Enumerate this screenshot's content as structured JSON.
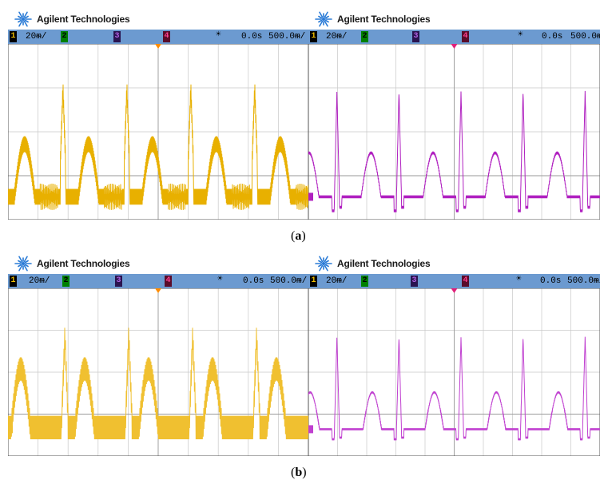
{
  "brand": "Agilent Technologies",
  "panels": [
    {
      "channel1": "1",
      "scale": "20ᵯ/",
      "channel2": "2",
      "channel3": "3",
      "channel4": "4",
      "delay": "0.0s",
      "timebase": "500.0ᵯ/",
      "ground_marker": "1",
      "trace_color": "#e8b000"
    },
    {
      "channel1": "1",
      "scale": "20ᵯ/",
      "channel2": "2",
      "channel3": "3",
      "channel4": "4",
      "delay": "0.0s",
      "timebase": "500.0ᵯ/",
      "ground_marker": "1",
      "trace_color": "#b020c0"
    },
    {
      "channel1": "1",
      "scale": "20ᵯ/",
      "channel2": "2",
      "channel3": "3",
      "channel4": "4",
      "delay": "0.0s",
      "timebase": "500.0ᵯ/",
      "ground_marker": "1",
      "trace_color": "#f0c030"
    },
    {
      "channel1": "1",
      "scale": "20ᵯ/",
      "channel2": "2",
      "channel3": "3",
      "channel4": "4",
      "delay": "0.0s",
      "timebase": "500.0ᵯ/",
      "ground_marker": "1",
      "trace_color": "#c040d0"
    }
  ],
  "captions": {
    "a": {
      "open": "(",
      "letter": "a",
      "close": ")"
    },
    "b": {
      "open": "(",
      "letter": "b",
      "close": ")"
    }
  }
}
